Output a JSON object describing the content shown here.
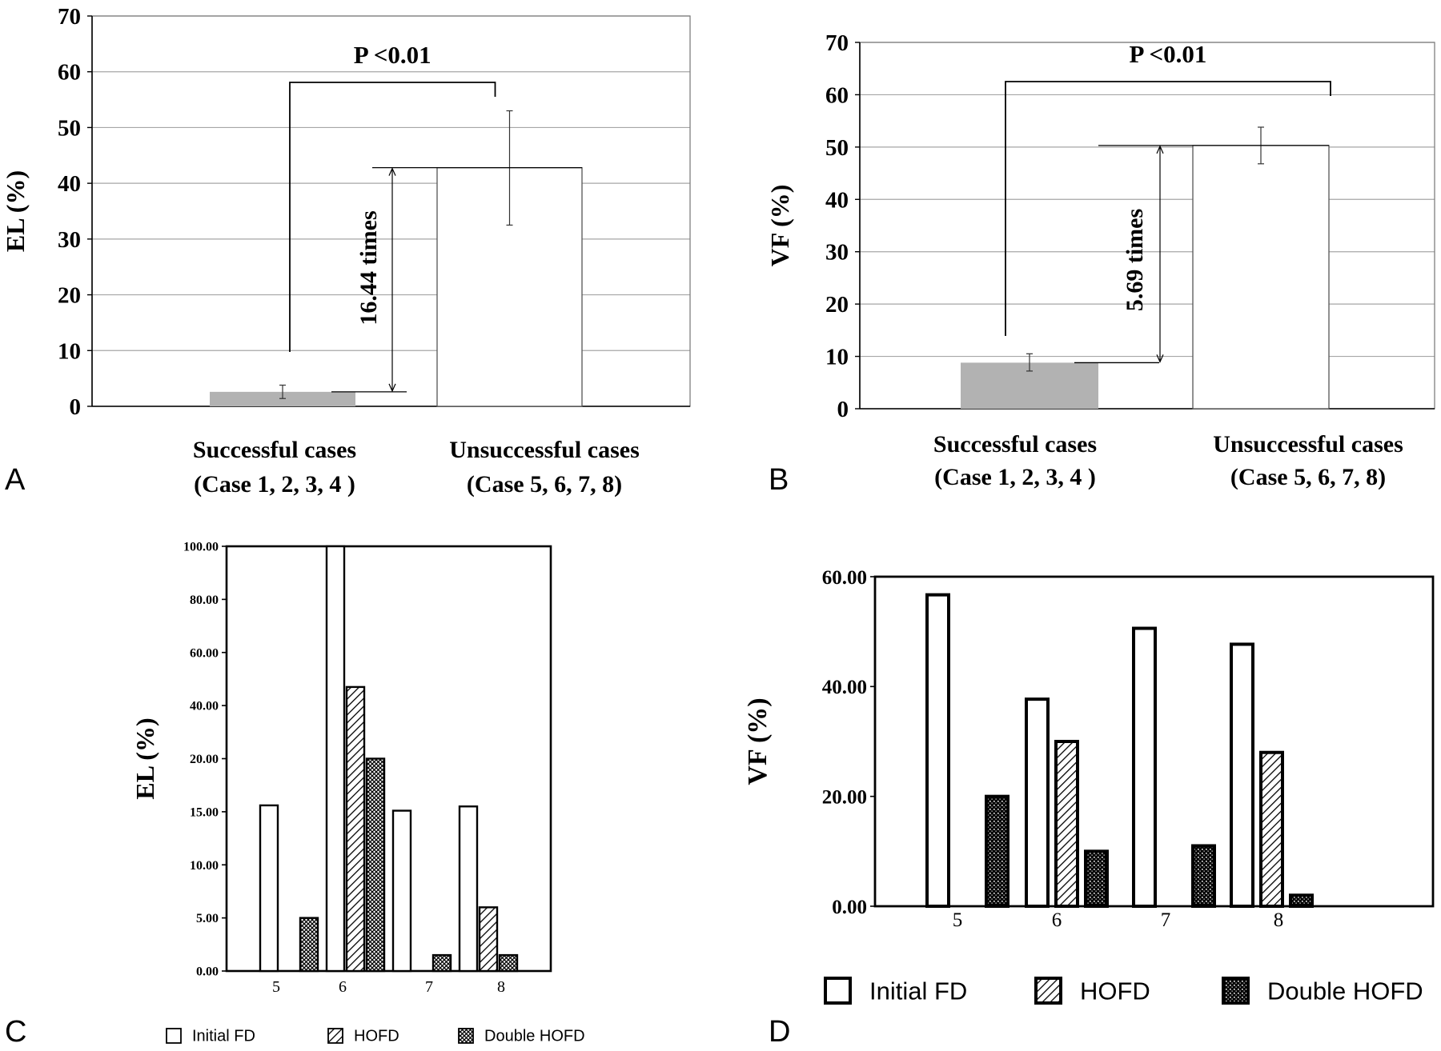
{
  "panels": {
    "A": {
      "letter": "A"
    },
    "B": {
      "letter": "B"
    },
    "C": {
      "letter": "C"
    },
    "D": {
      "letter": "D"
    }
  },
  "colors": {
    "successful_bar": "#b2b2b2",
    "unsuccessful_bar": "#ffffff",
    "axis": "#000000",
    "grid": "#a6a6a6"
  },
  "chart_data": [
    {
      "panel": "A",
      "type": "bar",
      "ylabel": "EL (%)",
      "ylim": [
        0,
        70
      ],
      "yticks": [
        "0",
        "10",
        "20",
        "30",
        "40",
        "50",
        "60",
        "70"
      ],
      "grid": true,
      "categories": [
        {
          "line1": "Successful cases",
          "line2": "(Case 1, 2, 3, 4 )"
        },
        {
          "line1": "Unsuccessful cases",
          "line2": "(Case 5, 6, 7, 8)"
        }
      ],
      "values": [
        2.6,
        42.8
      ],
      "error_low": [
        1.4,
        32.5
      ],
      "error_high": [
        3.8,
        53.0
      ],
      "significance": "P <0.01",
      "ratio_label": "16.44  times"
    },
    {
      "panel": "B",
      "type": "bar",
      "ylabel": "VF (%)",
      "ylim": [
        0,
        70
      ],
      "yticks": [
        "0",
        "10",
        "20",
        "30",
        "40",
        "50",
        "60",
        "70"
      ],
      "grid": true,
      "categories": [
        {
          "line1": "Successful cases",
          "line2": "(Case 1, 2, 3, 4 )"
        },
        {
          "line1": "Unsuccessful cases",
          "line2": "(Case 5, 6, 7, 8)"
        }
      ],
      "values": [
        8.8,
        50.3
      ],
      "error_low": [
        7.2,
        46.8
      ],
      "error_high": [
        10.5,
        53.8
      ],
      "significance": "P <0.01",
      "ratio_label": "5.69  times"
    },
    {
      "panel": "C",
      "type": "bar",
      "ylabel": "EL (%)",
      "yticks": [
        "0.00",
        "5.00",
        "10.00",
        "15.00",
        "20.00",
        "40.00",
        "60.00",
        "80.00",
        "100.00"
      ],
      "ytick_values": [
        0,
        5,
        10,
        15,
        20,
        40,
        60,
        80,
        100
      ],
      "ylim": [
        0,
        100
      ],
      "axis_scale": "piecewise: 0-20 linear step 5, 20-100 linear step 20",
      "categories": [
        "5",
        "6",
        "7",
        "8"
      ],
      "series": [
        {
          "name": "Initial FD",
          "values": [
            15.6,
            100.0,
            15.1,
            15.5
          ]
        },
        {
          "name": "HOFD",
          "values": [
            0,
            47.0,
            0,
            6.0
          ]
        },
        {
          "name": "Double HOFD",
          "values": [
            5.0,
            20.0,
            1.5,
            1.5
          ]
        }
      ],
      "legend": "bottom"
    },
    {
      "panel": "D",
      "type": "bar",
      "ylabel": "VF (%)",
      "ylim": [
        0,
        60
      ],
      "yticks": [
        "0.00",
        "20.00",
        "40.00",
        "60.00"
      ],
      "categories": [
        "5",
        "6",
        "7",
        "8"
      ],
      "series": [
        {
          "name": "Initial FD",
          "values": [
            56.7,
            37.7,
            50.6,
            47.7
          ]
        },
        {
          "name": "HOFD",
          "values": [
            0,
            30.0,
            0,
            28.0
          ]
        },
        {
          "name": "Double HOFD",
          "values": [
            20.0,
            10.0,
            11.0,
            2.0
          ]
        }
      ],
      "legend": "bottom"
    }
  ]
}
